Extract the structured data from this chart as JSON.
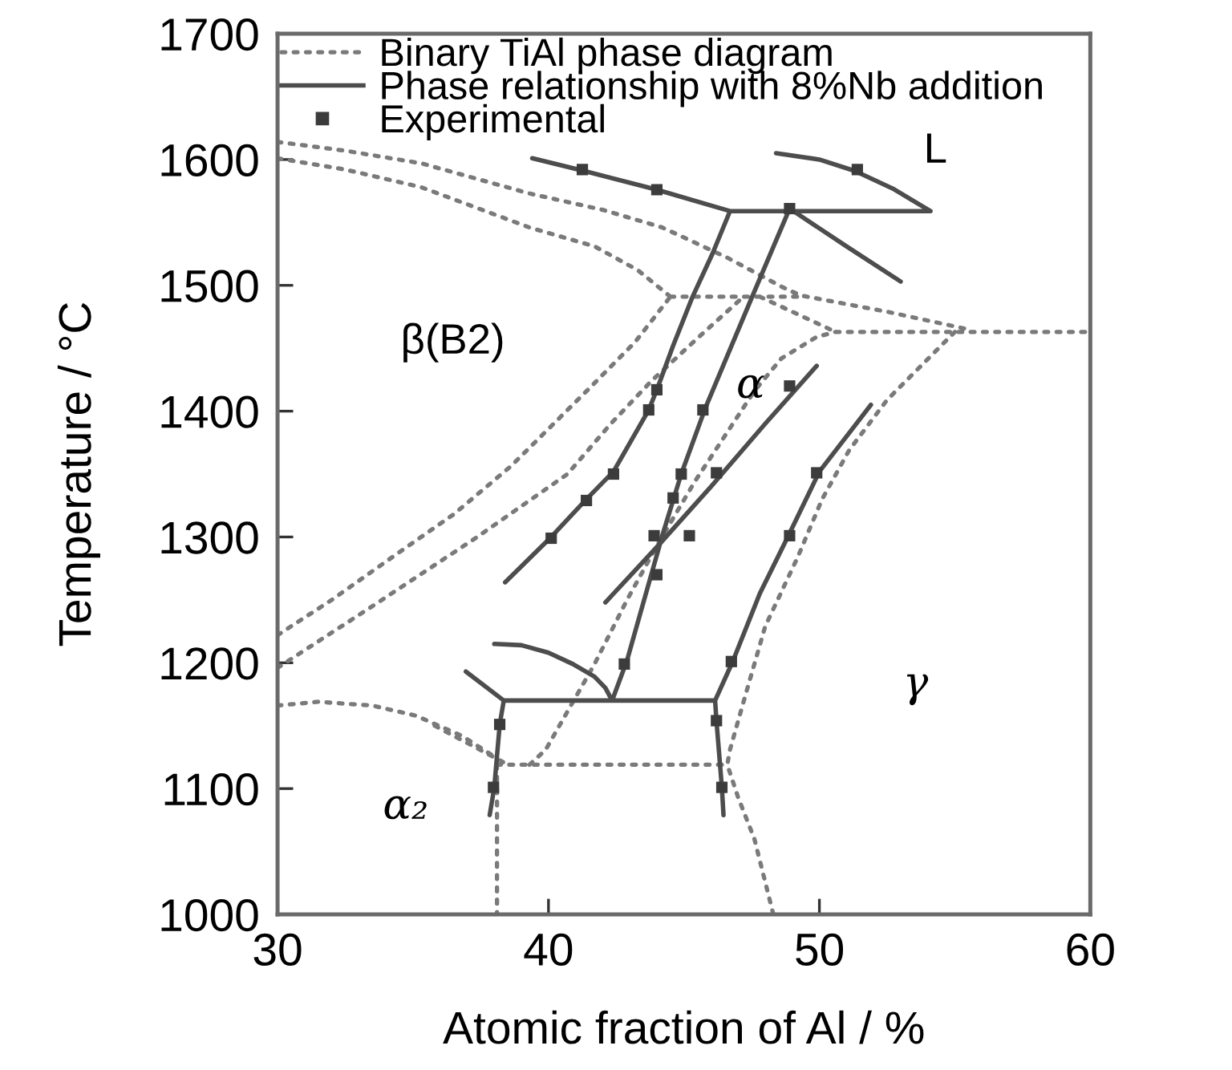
{
  "chart_data": {
    "type": "line",
    "xlabel": "Atomic fraction of Al / %",
    "ylabel": "Temperature / °C",
    "xlim": [
      30,
      60
    ],
    "ylim": [
      1000,
      1700
    ],
    "xticks": [
      30,
      40,
      50,
      60
    ],
    "yticks": [
      1000,
      1100,
      1200,
      1300,
      1400,
      1500,
      1600,
      1700
    ],
    "legend": "top left",
    "series": [
      {
        "name": "Binary TiAl phase diagram",
        "line_style": "dotted",
        "color": "#7a7a7a",
        "x": [
          30,
          32.5,
          35.3,
          39.3,
          42.0,
          44.2,
          46.6,
          48.6,
          49.3,
          52.5,
          55.5,
          null,
          30,
          32.5,
          35.3,
          39.3,
          41.7,
          43.3,
          44.5,
          null,
          44.5,
          49.3,
          null,
          47.8,
          50.6,
          null,
          50.6,
          60,
          null,
          30,
          32,
          34.5,
          36.5,
          38.6,
          41.5,
          43.2,
          44.5,
          null,
          30,
          33.5,
          37.3,
          40.7,
          42.3,
          43.8,
          45.5,
          47.2,
          null,
          39.3,
          39.9,
          40.8,
          41.7,
          42.9,
          44.0,
          45.4,
          46.5,
          47.6,
          48.6,
          49.9,
          50.6,
          null,
          55.0,
          52.5,
          51.1,
          50.1,
          49.2,
          48.0,
          47.2,
          46.7,
          46.6,
          47.0,
          47.6,
          48.3,
          null,
          38.1,
          46.6,
          null,
          38.1,
          38.1,
          null,
          30,
          31.5,
          33.5,
          35.1,
          36.8,
          38.1,
          null,
          35.8,
          37.2,
          38.5
        ],
        "values": [
          1614,
          1607,
          1597,
          1573,
          1560,
          1546,
          1522,
          1499,
          1492,
          1479,
          1465,
          null,
          1601,
          1592,
          1578,
          1546,
          1531,
          1512,
          1491,
          null,
          1491,
          1491,
          null,
          1491,
          1463,
          null,
          1463,
          1463,
          null,
          1222,
          1250,
          1288,
          1318,
          1356,
          1418,
          1455,
          1491,
          null,
          1196,
          1245,
          1299,
          1350,
          1390,
          1424,
          1458,
          1491,
          null,
          1119,
          1131,
          1165,
          1199,
          1250,
          1293,
          1344,
          1380,
          1416,
          1442,
          1459,
          1463,
          null,
          1463,
          1409,
          1369,
          1330,
          1284,
          1229,
          1169,
          1131,
          1119,
          1093,
          1060,
          1000,
          null,
          1119,
          1119,
          null,
          1119,
          1000,
          null,
          1166,
          1169,
          1166,
          1158,
          1142,
          1124,
          null,
          1150,
          1134,
          1119
        ]
      },
      {
        "name": "Phase relationship with 8%Nb addition",
        "line_style": "solid",
        "color": "#4d4d4d",
        "x": [
          39.4,
          41.3,
          44.0,
          46.7,
          null,
          46.7,
          54.1,
          null,
          48.4,
          50.0,
          51.3,
          52.7,
          54.1,
          null,
          48.9,
          51.0,
          53.0,
          null,
          46.7,
          46.05,
          45.3,
          44.6,
          44.0,
          43.7,
          42.4,
          41.4,
          40.1,
          38.4,
          null,
          48.9,
          47.5,
          45.8,
          44.9,
          44.2,
          42.9,
          42.35,
          null,
          42.1,
          44.0,
          46.0,
          48.0,
          49.9,
          null,
          46.15,
          46.8,
          47.8,
          48.9,
          50.0,
          51.9,
          null,
          38.35,
          46.15,
          null,
          36.95,
          38.35,
          null,
          38.0,
          39.0,
          40.0,
          40.9,
          41.7,
          42.1,
          42.35,
          null,
          38.35,
          38.2,
          38.0,
          37.83,
          null,
          46.15,
          46.2,
          46.4,
          46.46
        ],
        "values": [
          1601,
          1591,
          1576,
          1559,
          null,
          1559,
          1559,
          null,
          1605,
          1600,
          1591,
          1577,
          1559,
          null,
          1561,
          1531,
          1503,
          null,
          1559,
          1525,
          1490,
          1452,
          1417,
          1401,
          1352,
          1330,
          1300,
          1264,
          null,
          1561,
          1490,
          1403,
          1350,
          1301,
          1202,
          1170,
          null,
          1248,
          1292,
          1340,
          1390,
          1436,
          null,
          1170,
          1201,
          1255,
          1303,
          1352,
          1405,
          null,
          1170,
          1170,
          null,
          1193,
          1170,
          null,
          1215,
          1214,
          1208,
          1199,
          1189,
          1180,
          1170,
          null,
          1170,
          1151,
          1101,
          1079,
          null,
          1170,
          1154,
          1101,
          1079
        ]
      },
      {
        "name": "Experimental",
        "type": "scatter",
        "marker": "square",
        "color": "#3c3c3c",
        "x": [
          41.25,
          44.0,
          48.9,
          51.4,
          44.0,
          43.7,
          42.4,
          41.4,
          40.1,
          45.7,
          44.9,
          44.6,
          43.9,
          44.0,
          45.2,
          46.2,
          48.9,
          49.9,
          48.9,
          46.75,
          42.8,
          38.2,
          37.97,
          46.2,
          46.4
        ],
        "values": [
          1592,
          1576,
          1561,
          1592,
          1417,
          1401,
          1350,
          1329,
          1299,
          1401,
          1350,
          1331,
          1301,
          1270,
          1301,
          1351,
          1420,
          1351,
          1301,
          1201,
          1199,
          1151,
          1101,
          1154,
          1101
        ]
      }
    ],
    "annotations": [
      "L",
      "β(B2)",
      "α",
      "γ",
      "α₂"
    ]
  }
}
